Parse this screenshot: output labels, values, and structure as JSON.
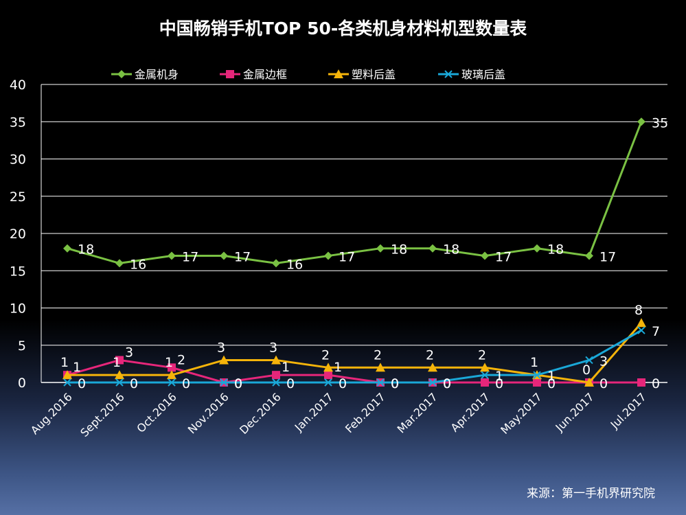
{
  "chart_data": {
    "type": "line",
    "title": "中国畅销手机TOP 50-各类机身材料机型数量表",
    "categories": [
      "Aug.2016",
      "Sept.2016",
      "Oct.2016",
      "Nov.2016",
      "Dec.2016",
      "Jan.2017",
      "Feb.2017",
      "Mar.2017",
      "Apr.2017",
      "May.2017",
      "Jun.2017",
      "Jul.2017"
    ],
    "ylim": [
      0,
      40
    ],
    "yticks": [
      0,
      5,
      10,
      15,
      20,
      25,
      30,
      35,
      40
    ],
    "grid": true,
    "legend_position": "top",
    "series": [
      {
        "name": "金属机身",
        "color": "#7ac143",
        "marker": "diamond",
        "values": [
          18,
          16,
          17,
          17,
          16,
          17,
          18,
          18,
          17,
          18,
          17,
          35
        ]
      },
      {
        "name": "金属边框",
        "color": "#e6267a",
        "marker": "square",
        "values": [
          1,
          3,
          2,
          0,
          1,
          1,
          0,
          0,
          0,
          0,
          0,
          0
        ]
      },
      {
        "name": "塑料后盖",
        "color": "#f5b40a",
        "marker": "triangle",
        "values": [
          1,
          1,
          1,
          3,
          3,
          2,
          2,
          2,
          2,
          1,
          0,
          8
        ]
      },
      {
        "name": "玻璃后盖",
        "color": "#1aa8d8",
        "marker": "x",
        "values": [
          0,
          0,
          0,
          0,
          0,
          0,
          0,
          0,
          1,
          1,
          3,
          7
        ]
      }
    ]
  },
  "source": "来源：第一手机界研究院"
}
